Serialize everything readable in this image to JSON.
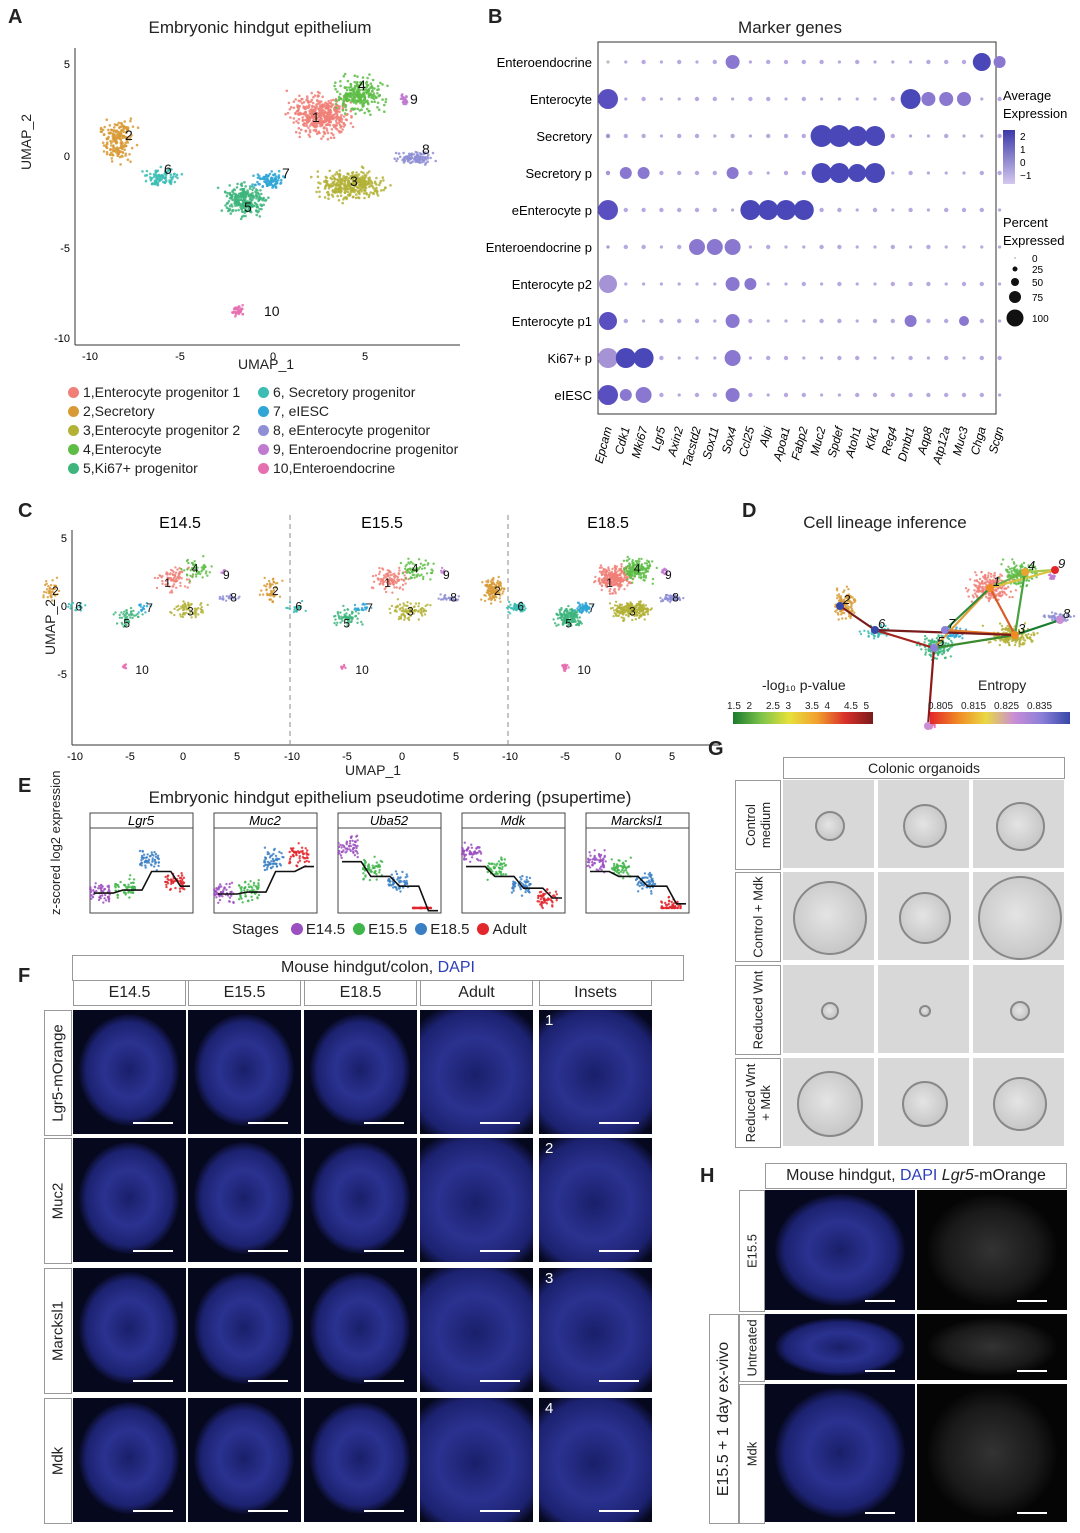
{
  "panelA": {
    "label": "A",
    "title": "Embryonic hindgut epithelium",
    "xlabel": "UMAP_1",
    "ylabel": "UMAP_2",
    "xticks": [
      "-10",
      "-5",
      "0",
      "5"
    ],
    "yticks": [
      "5",
      "0",
      "-5",
      "-10"
    ],
    "cluster_numbers": [
      "1",
      "2",
      "3",
      "4",
      "5",
      "6",
      "7",
      "8",
      "9",
      "10"
    ],
    "legend": [
      {
        "label": "1,Enterocyte progenitor 1",
        "color": "#f07f77"
      },
      {
        "label": "2,Secretory",
        "color": "#d89a35"
      },
      {
        "label": "3,Enterocyte progenitor 2",
        "color": "#b3b236"
      },
      {
        "label": "4,Enterocyte",
        "color": "#5dbd45"
      },
      {
        "label": "5,Ki67+ progenitor",
        "color": "#3db57c"
      },
      {
        "label": "6,  Secretory progenitor",
        "color": "#3bbdb4"
      },
      {
        "label": "7,  eIESC",
        "color": "#2ea6d6"
      },
      {
        "label": "8,  eEnterocyte progenitor",
        "color": "#8f8fd6"
      },
      {
        "label": "9,  Enteroendocrine progenitor",
        "color": "#c07bd0"
      },
      {
        "label": "10,Enteroendocrine",
        "color": "#e66fb0"
      }
    ]
  },
  "panelB": {
    "label": "B",
    "title": "Marker genes",
    "rows": [
      "Enteroendocrine",
      "Enterocyte",
      "Secretory",
      "Secretory p",
      "eEnterocyte p",
      "Enteroendocrine p",
      "Enterocyte p2",
      "Enterocyte p1",
      "Ki67+ p",
      "eIESC"
    ],
    "genes": [
      "Epcam",
      "Cdk1",
      "Mki67",
      "Lgr5",
      "Axin2",
      "Tacstd2",
      "Sox11",
      "Sox4",
      "Ccl25",
      "Alpi",
      "Apoa1",
      "Fabp2",
      "Muc2",
      "Spdef",
      "Atoh1",
      "Klk1",
      "Reg4",
      "Dmbt1",
      "Aqp8",
      "Atp12a",
      "Muc3",
      "Chga",
      "Scgn"
    ],
    "legend_avg_title": "Average Expression",
    "legend_avg_ticks": [
      "2",
      "1",
      "0",
      "−1"
    ],
    "legend_pct_title": "Percent Expressed",
    "legend_pct_ticks": [
      "0",
      "25",
      "50",
      "75",
      "100"
    ]
  },
  "panelC": {
    "label": "C",
    "stages": [
      "E14.5",
      "E15.5",
      "E18.5"
    ],
    "xlabel": "UMAP_1",
    "ylabel": "UMAP_2",
    "xticks": [
      "-10",
      "-5",
      "0",
      "5"
    ],
    "yticks": [
      "5",
      "0",
      "-5"
    ]
  },
  "panelD": {
    "label": "D",
    "title": "Cell lineage inference",
    "pval_title": "-log₁₀ p-value",
    "pval_ticks": [
      "1.5",
      "2",
      "2.5",
      "3",
      "3.5",
      "4",
      "4.5",
      "5"
    ],
    "entropy_title": "Entropy",
    "entropy_ticks": [
      "0.805",
      "0.815",
      "0.825",
      "0.835"
    ]
  },
  "panelE": {
    "label": "E",
    "title": "Embryonic hindgut epithelium pseudotime ordering (psupertime)",
    "ylabel": "z-scored log2 expression",
    "genes": [
      "Lgr5",
      "Muc2",
      "Uba52",
      "Mdk",
      "Marcksl1"
    ],
    "stages_label": "Stages",
    "stages": [
      {
        "name": "E14.5",
        "color": "#9b4fc0"
      },
      {
        "name": "E15.5",
        "color": "#3fb54a"
      },
      {
        "name": "E18.5",
        "color": "#3a7fc4"
      },
      {
        "name": "Adult",
        "color": "#e2262b"
      }
    ]
  },
  "panelF": {
    "label": "F",
    "header_prefix": "Mouse hindgut/colon, ",
    "header_dapi": "DAPI",
    "columns": [
      "E14.5",
      "E15.5",
      "E18.5",
      "Adult",
      "Insets"
    ],
    "rows": [
      "Lgr5-mOrange",
      "Muc2",
      "Marcksl1",
      "Mdk"
    ],
    "row_italic": "Lgr5",
    "row_suffix": "-mOrange",
    "inset_numbers": [
      "1",
      "2",
      "3",
      "4"
    ]
  },
  "panelG": {
    "label": "G",
    "header": "Colonic organoids",
    "rows": [
      "Control medium",
      "Control + Mdk",
      "Reduced Wnt",
      "Reduced Wnt + Mdk"
    ]
  },
  "panelH": {
    "label": "H",
    "header_prefix": "Mouse hindgut, ",
    "header_dapi": "DAPI",
    "header_italic": "Lgr5",
    "header_suffix": "-mOrange",
    "rows": [
      "E15.5",
      "Untreated",
      "Mdk"
    ],
    "group_label": "E15.5 + 1 day ex-vivo"
  }
}
